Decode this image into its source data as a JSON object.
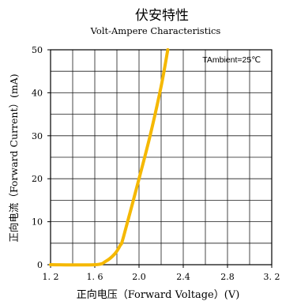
{
  "chart_data": {
    "type": "line",
    "title": "伏安特性",
    "subtitle": "Volt-Ampere Characteristics",
    "xlabel": "正向电压（Forward Voltage）(V)",
    "ylabel": "正向电流（Forward Current）(mA)",
    "xlim": [
      1.2,
      3.2
    ],
    "ylim": [
      0,
      50
    ],
    "x_ticks": [
      {
        "value": 1.2,
        "label": "1. 2"
      },
      {
        "value": 1.6,
        "label": "1. 6"
      },
      {
        "value": 2.0,
        "label": "2.0"
      },
      {
        "value": 2.4,
        "label": "2.4"
      },
      {
        "value": 2.8,
        "label": "2.8"
      },
      {
        "value": 3.2,
        "label": "3. 2"
      }
    ],
    "y_ticks": [
      {
        "value": 0,
        "label": "0"
      },
      {
        "value": 10,
        "label": "10"
      },
      {
        "value": 20,
        "label": "20"
      },
      {
        "value": 30,
        "label": "30"
      },
      {
        "value": 40,
        "label": "40"
      },
      {
        "value": 50,
        "label": "50"
      }
    ],
    "x_grid_step": 0.2,
    "y_grid_step": 5,
    "grid": true,
    "annotation": "TAmbient=25℃",
    "annotation_position": "top-right",
    "series": [
      {
        "color": "#f5b800",
        "x": [
          1.2,
          1.6,
          1.7,
          1.78,
          1.83,
          1.86,
          2.0,
          2.1,
          2.2,
          2.26
        ],
        "y": [
          0,
          0,
          0.8,
          2.5,
          4.5,
          6.5,
          20,
          30,
          41.5,
          50
        ]
      }
    ]
  }
}
